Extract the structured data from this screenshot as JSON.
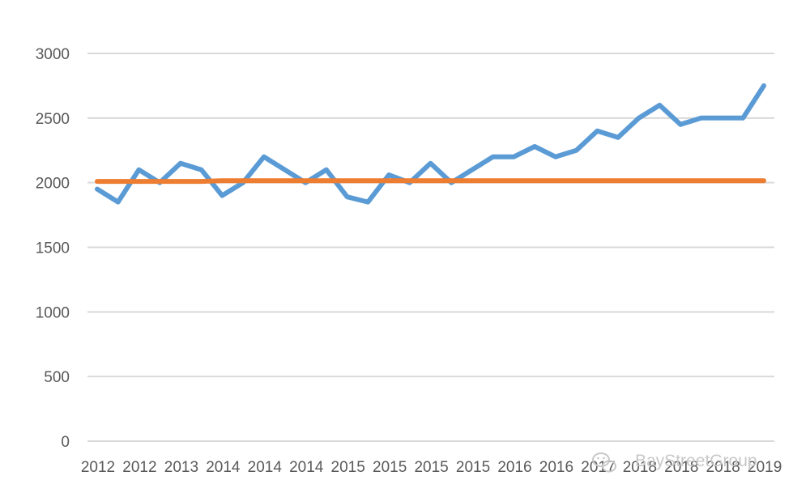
{
  "chart_data": {
    "type": "line",
    "title": "",
    "xlabel": "",
    "ylabel": "",
    "ylim": [
      0,
      3000
    ],
    "yticks": [
      0,
      500,
      1000,
      1500,
      2000,
      2500,
      3000
    ],
    "grid": true,
    "legend": "none",
    "x_tick_labels": [
      "2012",
      "2012",
      "2013",
      "2014",
      "2014",
      "2014",
      "2015",
      "2015",
      "2015",
      "2015",
      "2016",
      "2016",
      "2017",
      "2018",
      "2018",
      "2018",
      "2019"
    ],
    "series": [
      {
        "color": "#5b9bd5",
        "values": [
          1950,
          1850,
          2100,
          2000,
          2150,
          2100,
          1900,
          2000,
          2200,
          2100,
          2000,
          2100,
          1890,
          1850,
          2060,
          2000,
          2150,
          2000,
          2100,
          2200,
          2200,
          2280,
          2200,
          2250,
          2400,
          2350,
          2500,
          2600,
          2450,
          2500,
          2500,
          2500,
          2750
        ]
      },
      {
        "color": "#ed7d31",
        "values": [
          2010,
          2010,
          2010,
          2010,
          2010,
          2010,
          2015,
          2015,
          2015,
          2015,
          2015,
          2015,
          2015,
          2015,
          2015,
          2015,
          2015,
          2015,
          2015,
          2015,
          2015,
          2015,
          2015,
          2015,
          2015,
          2015,
          2015,
          2015,
          2015,
          2015,
          2015,
          2015,
          2015
        ]
      }
    ]
  },
  "watermark": {
    "text": "BayStreetGroup",
    "icon": "wechat-icon"
  }
}
